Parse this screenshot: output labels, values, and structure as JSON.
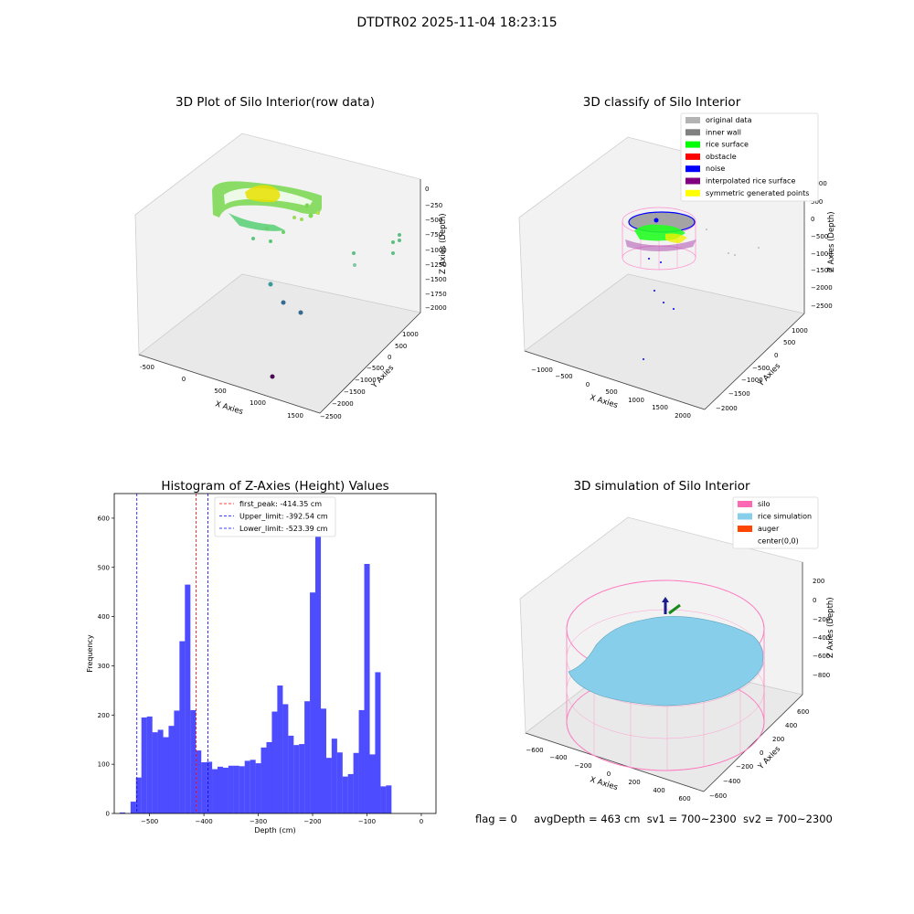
{
  "suptitle": "DTDTR02 2025-11-04 18:23:15",
  "status": {
    "flag": "flag = 0",
    "avg_depth": "avgDepth = 463 cm",
    "sv1": "sv1 = 700~2300",
    "sv2": "sv2 = 700~2300"
  },
  "chart_data": [
    {
      "type": "scatter",
      "title": "3D Plot of Silo Interior(row data)",
      "xlabel": "X Axies",
      "ylabel": "Y Axies",
      "zlabel": "Z Axies (Depth)",
      "x_ticks": [
        "-500",
        "0",
        "500",
        "1000",
        "1500"
      ],
      "y_ticks": [
        "1000",
        "500",
        "0",
        "−500",
        "−1000",
        "−1500",
        "−2000",
        "−2500"
      ],
      "z_ticks": [
        "0",
        "−250",
        "−500",
        "−750",
        "−1000",
        "−1250",
        "−1500",
        "−1750",
        "−2000"
      ]
    },
    {
      "type": "scatter",
      "title": "3D classify of Silo Interior",
      "xlabel": "X Axies",
      "ylabel": "Y Axies",
      "zlabel": "Z Axies (Depth)",
      "x_ticks": [
        "−1000",
        "−500",
        "0",
        "500",
        "1000",
        "1500",
        "2000"
      ],
      "y_ticks": [
        "1000",
        "500",
        "0",
        "−500",
        "−1000",
        "−1500",
        "−2000"
      ],
      "z_ticks": [
        "1000",
        "500",
        "0",
        "−500",
        "−1000",
        "−1500",
        "−2000",
        "−2500"
      ],
      "legend": [
        {
          "label": "original data",
          "color": "#b3b3b3"
        },
        {
          "label": "inner wall",
          "color": "#808080"
        },
        {
          "label": "rice surface",
          "color": "#00ff00"
        },
        {
          "label": "obstacle",
          "color": "#ff0000"
        },
        {
          "label": "noise",
          "color": "#0000ff"
        },
        {
          "label": "interpolated rice surface",
          "color": "#800080"
        },
        {
          "label": "symmetric generated points",
          "color": "#ffff00"
        }
      ]
    },
    {
      "type": "bar",
      "title": "Histogram of Z-Axies (Height) Values",
      "xlabel": "Depth (cm)",
      "ylabel": "Frequency",
      "bar_color": "#4d4dff",
      "x_ticks": [
        "−500",
        "−400",
        "−300",
        "−200",
        "−100",
        "0"
      ],
      "y_ticks": [
        "0",
        "100",
        "200",
        "300",
        "400",
        "500",
        "600"
      ],
      "xlim": [
        -565,
        27
      ],
      "ylim": [
        0,
        650
      ],
      "bin_start": -555,
      "bin_width": 10,
      "values": [
        2,
        0,
        24,
        73,
        195,
        197,
        165,
        170,
        155,
        178,
        209,
        350,
        465,
        210,
        128,
        104,
        105,
        90,
        95,
        93,
        97,
        97,
        96,
        107,
        109,
        102,
        134,
        145,
        207,
        260,
        222,
        158,
        139,
        141,
        228,
        449,
        622,
        213,
        113,
        152,
        124,
        75,
        80,
        123,
        210,
        507,
        120,
        287,
        55,
        57
      ],
      "lines": [
        {
          "label": "first_peak: -414.35 cm",
          "x": -414.35,
          "color": "#ff0000"
        },
        {
          "label": "Upper_limit: -392.54 cm",
          "x": -392.54,
          "color": "#0000ff"
        },
        {
          "label": "Lower_limit: -523.39 cm",
          "x": -523.39,
          "color": "#0000ff"
        }
      ]
    },
    {
      "type": "scatter",
      "title": "3D simulation of Silo Interior",
      "xlabel": "X Axies",
      "ylabel": "Y Axies",
      "zlabel": "Z Axies (Depth)",
      "x_ticks": [
        "−600",
        "−400",
        "−200",
        "0",
        "200",
        "400",
        "600"
      ],
      "y_ticks": [
        "600",
        "400",
        "200",
        "0",
        "−200",
        "−400",
        "−600"
      ],
      "z_ticks": [
        "200",
        "0",
        "−200",
        "−400",
        "−600",
        "−800"
      ],
      "legend": [
        {
          "label": "silo",
          "color": "#ff69b4"
        },
        {
          "label": "rice simulation",
          "color": "#87ceeb"
        },
        {
          "label": "auger",
          "color": "#ff4500"
        },
        {
          "label": "center(0,0)",
          "color": "#ffffff"
        }
      ]
    }
  ]
}
